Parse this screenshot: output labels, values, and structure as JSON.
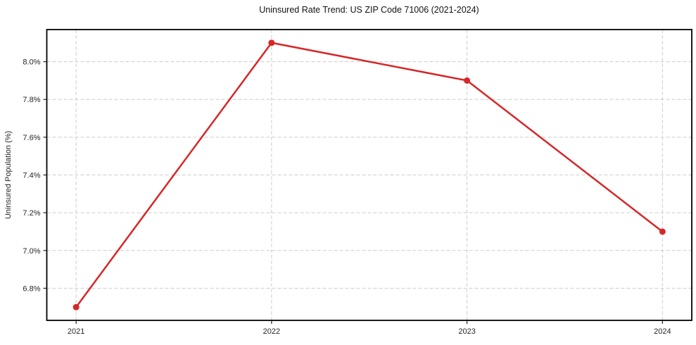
{
  "page": {
    "background": "#ffffff"
  },
  "chart_data": {
    "type": "line",
    "title": "Uninsured Rate Trend: US ZIP Code 71006 (2021-2024)",
    "xlabel": "",
    "ylabel": "Uninsured Population (%)",
    "x": [
      2021,
      2022,
      2023,
      2024
    ],
    "x_tick_labels": [
      "2021",
      "2022",
      "2023",
      "2024"
    ],
    "series": [
      {
        "name": "uninsured-rate",
        "values": [
          6.7,
          8.1,
          7.9,
          7.1
        ],
        "values_display": [
          "6.7%",
          "8.1%",
          "7.9%",
          "7.1%"
        ],
        "color": "#d62728",
        "marker": "circle",
        "line_width": 2.5,
        "marker_radius": 4.5
      }
    ],
    "y_ticks": [
      6.8,
      7.0,
      7.2,
      7.4,
      7.6,
      7.8,
      8.0
    ],
    "y_tick_labels": [
      "6.8%",
      "7.0%",
      "7.2%",
      "7.4%",
      "7.6%",
      "7.8%",
      "8.0%"
    ],
    "xlim": [
      2020.85,
      2024.15
    ],
    "ylim": [
      6.63,
      8.17
    ],
    "grid": "on",
    "grid_style": "dashed",
    "grid_color": "#cccccc",
    "axis_color": "#000000",
    "tick_color": "#222222",
    "text_color": "#262626",
    "legend": "none"
  }
}
